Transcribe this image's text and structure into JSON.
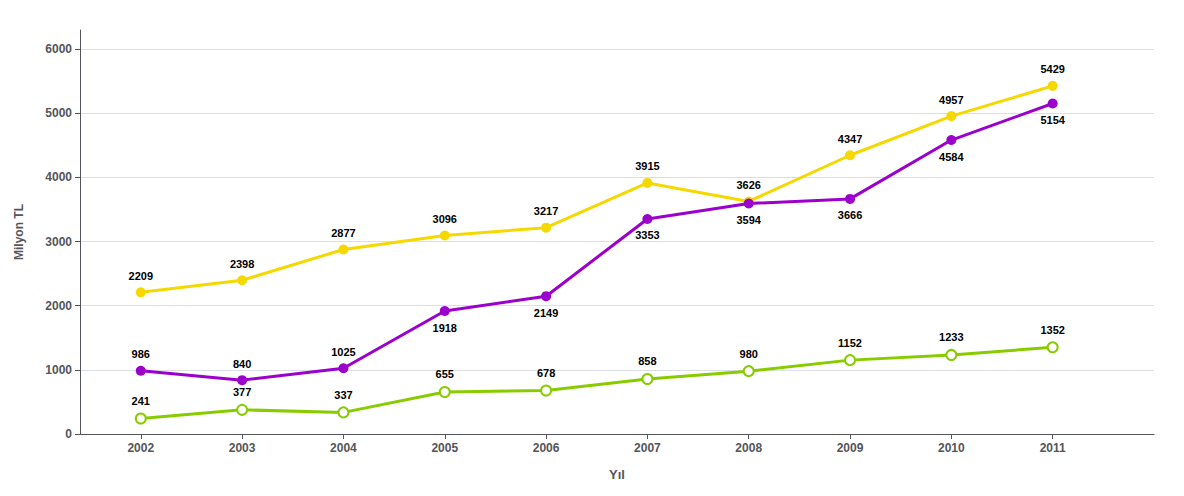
{
  "chart_data": {
    "type": "line",
    "xlabel": "Yıl",
    "ylabel": "Milyon TL",
    "x": [
      2002,
      2003,
      2004,
      2005,
      2006,
      2007,
      2008,
      2009,
      2010,
      2011
    ],
    "series": [
      {
        "color": "#F5D800",
        "marker": "circle",
        "values": [
          2209,
          2398,
          2877,
          3096,
          3217,
          3915,
          3626,
          4347,
          4957,
          5429
        ]
      },
      {
        "color": "#9B00CC",
        "marker": "circle",
        "values": [
          986,
          840,
          1025,
          1918,
          2149,
          3353,
          3594,
          3666,
          4584,
          5154
        ]
      },
      {
        "color": "#88CC00",
        "marker": "open_circle",
        "values": [
          241,
          377,
          337,
          655,
          678,
          858,
          980,
          1152,
          1233,
          1352
        ]
      }
    ],
    "xlim": [
      2001.4,
      2012.0
    ],
    "xticks": [
      2002,
      2003,
      2004,
      2005,
      2006,
      2007,
      2008,
      2009,
      2010,
      2011
    ],
    "ylim": [
      0,
      6300
    ],
    "yticks": [
      0,
      1000,
      2000,
      3000,
      4000,
      5000,
      6000
    ],
    "grid": true,
    "data_labels": true
  }
}
